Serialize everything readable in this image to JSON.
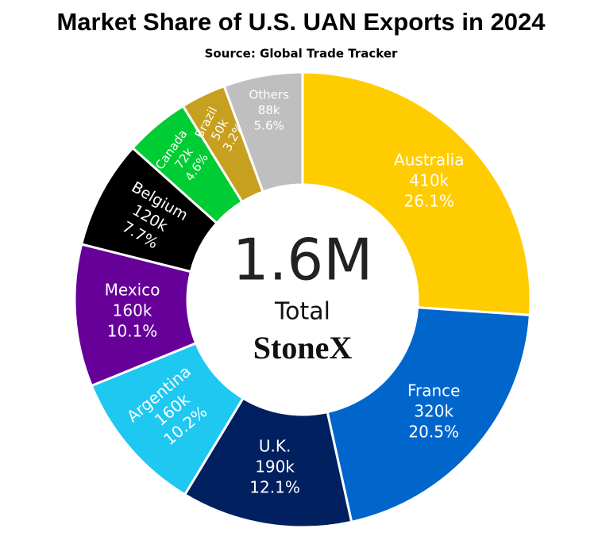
{
  "chart_data": {
    "type": "donut",
    "title": "Market Share of U.S. UAN Exports in 2024",
    "subtitle": "Source: Global Trade Tracker",
    "categories": [
      "Australia",
      "France",
      "U.K.",
      "Argentina",
      "Mexico",
      "Belgium",
      "Canada",
      "Brazil",
      "Others"
    ],
    "values": [
      26.1,
      20.5,
      12.1,
      10.2,
      10.1,
      7.7,
      4.6,
      3.2,
      5.6
    ],
    "value_labels": [
      "26.1%",
      "20.5%",
      "12.1%",
      "10.2%",
      "10.1%",
      "7.7%",
      "4.6%",
      "3.2%",
      "5.6%"
    ],
    "volumes": [
      410000,
      320000,
      190000,
      160000,
      160000,
      120000,
      72000,
      50000,
      88000
    ],
    "volume_labels": [
      "410k",
      "320k",
      "190k",
      "160k",
      "160k",
      "120k",
      "72k",
      "50k",
      "88k"
    ],
    "colors": [
      "#FFCC00",
      "#0066CC",
      "#002060",
      "#1EC8F0",
      "#660099",
      "#000000",
      "#00CC33",
      "#C8A020",
      "#BFBFBF"
    ],
    "total": 1600000,
    "total_label": "1.6M",
    "total_caption": "Total",
    "brand": "StoneX"
  }
}
